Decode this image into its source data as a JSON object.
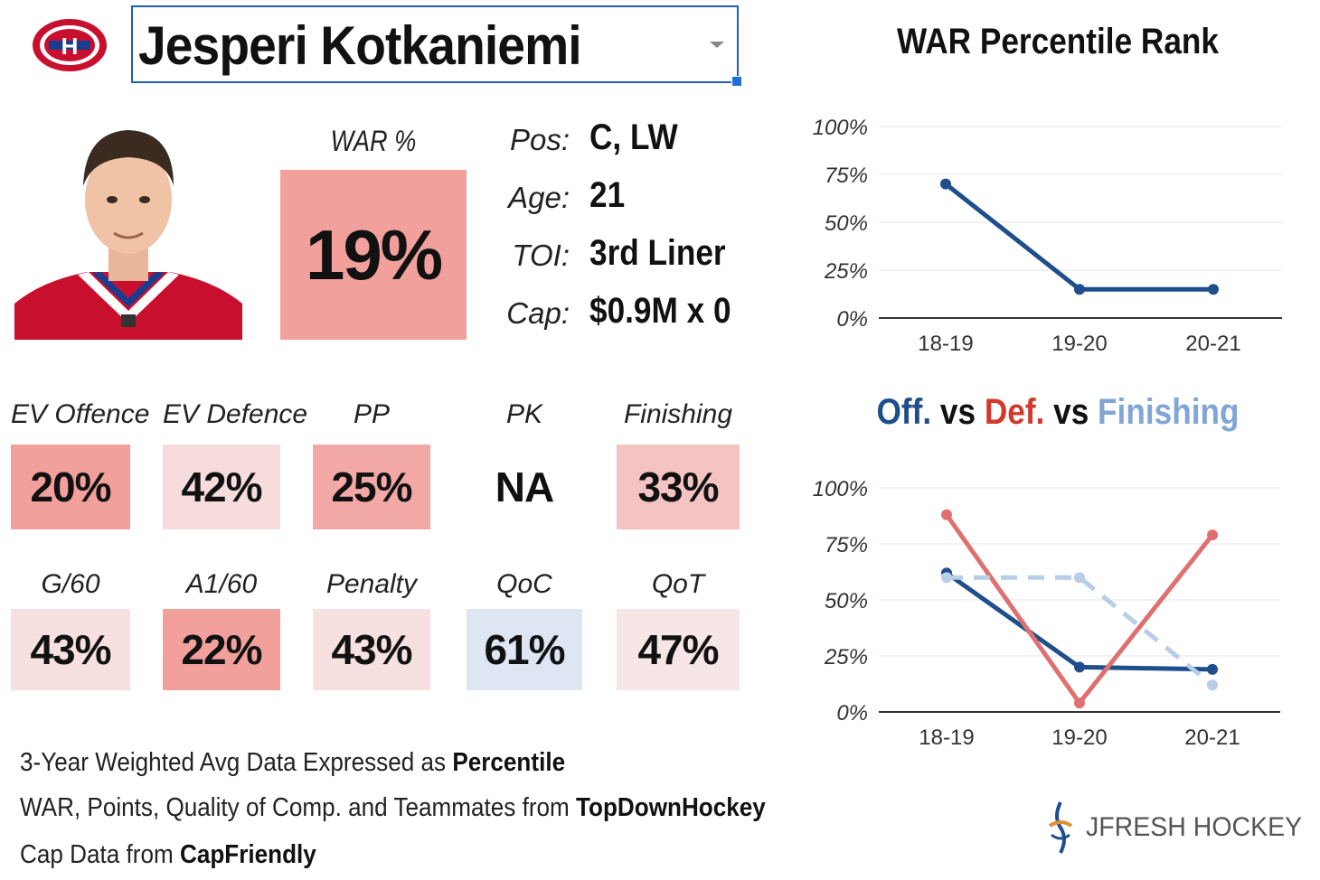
{
  "team": {
    "logo_icon": "canadiens-logo-icon",
    "colors": {
      "red": "#c8102e",
      "blue": "#1a3d8f"
    }
  },
  "player": {
    "name": "Jesperi Kotkaniemi"
  },
  "war": {
    "label": "WAR %",
    "value": "19%",
    "color": "#f2a09c"
  },
  "info": [
    {
      "label": "Pos:",
      "value": "C, LW"
    },
    {
      "label": "Age:",
      "value": "21"
    },
    {
      "label": "TOI:",
      "value": "3rd Liner"
    },
    {
      "label": "Cap:",
      "value": "$0.9M x 0"
    }
  ],
  "stats_row1": [
    {
      "label": "EV Offence",
      "value": "20%",
      "color": "#f2a09c"
    },
    {
      "label": "EV Defence",
      "value": "42%",
      "color": "#f6dcdc"
    },
    {
      "label": "PP",
      "value": "25%",
      "color": "#f2a9a6"
    },
    {
      "label": "PK",
      "value": "NA",
      "color": "#ffffff"
    },
    {
      "label": "Finishing",
      "value": "33%",
      "color": "#f4c4c3"
    }
  ],
  "stats_row2": [
    {
      "label": "G/60",
      "value": "43%",
      "color": "#f6e0e0"
    },
    {
      "label": "A1/60",
      "value": "22%",
      "color": "#f2a09c"
    },
    {
      "label": "Penalty",
      "value": "43%",
      "color": "#f6e0e0"
    },
    {
      "label": "QoC",
      "value": "61%",
      "color": "#dde6f2"
    },
    {
      "label": "QoT",
      "value": "47%",
      "color": "#f6e6e6"
    }
  ],
  "footer": [
    {
      "text": "3-Year Weighted Avg Data Expressed as ",
      "bold": "Percentile"
    },
    {
      "text": "WAR, Points, Quality of Comp. and Teammates from ",
      "bold": "TopDownHockey"
    },
    {
      "text": "Cap Data from ",
      "bold": "CapFriendly"
    }
  ],
  "brand": {
    "icon": "jfresh-logo-icon",
    "text": "JFRESH HOCKEY"
  },
  "chart_data": [
    {
      "type": "line",
      "title": "WAR Percentile Rank",
      "categories": [
        "18-19",
        "19-20",
        "20-21"
      ],
      "y_ticks": [
        "0%",
        "25%",
        "50%",
        "75%",
        "100%"
      ],
      "ylim": [
        0,
        100
      ],
      "series": [
        {
          "name": "WAR",
          "values": [
            70,
            15,
            15
          ],
          "color": "#1f4e8c",
          "dashed": false
        }
      ]
    },
    {
      "type": "line",
      "title_parts": [
        {
          "text": "Off.",
          "color": "#1f4e8c"
        },
        {
          "text": " vs ",
          "color": "#111111"
        },
        {
          "text": "Def.",
          "color": "#d0392b"
        },
        {
          "text": " vs ",
          "color": "#111111"
        },
        {
          "text": "Finishing",
          "color": "#7fa6d6"
        }
      ],
      "categories": [
        "18-19",
        "19-20",
        "20-21"
      ],
      "y_ticks": [
        "0%",
        "25%",
        "50%",
        "75%",
        "100%"
      ],
      "ylim": [
        0,
        100
      ],
      "series": [
        {
          "name": "Off.",
          "values": [
            62,
            20,
            19
          ],
          "color": "#1f4e8c",
          "dashed": false
        },
        {
          "name": "Def.",
          "values": [
            88,
            4,
            79
          ],
          "color": "#e07070",
          "dashed": false
        },
        {
          "name": "Finishing",
          "values": [
            60,
            60,
            12
          ],
          "color": "#b8cde6",
          "dashed": true
        }
      ]
    }
  ]
}
